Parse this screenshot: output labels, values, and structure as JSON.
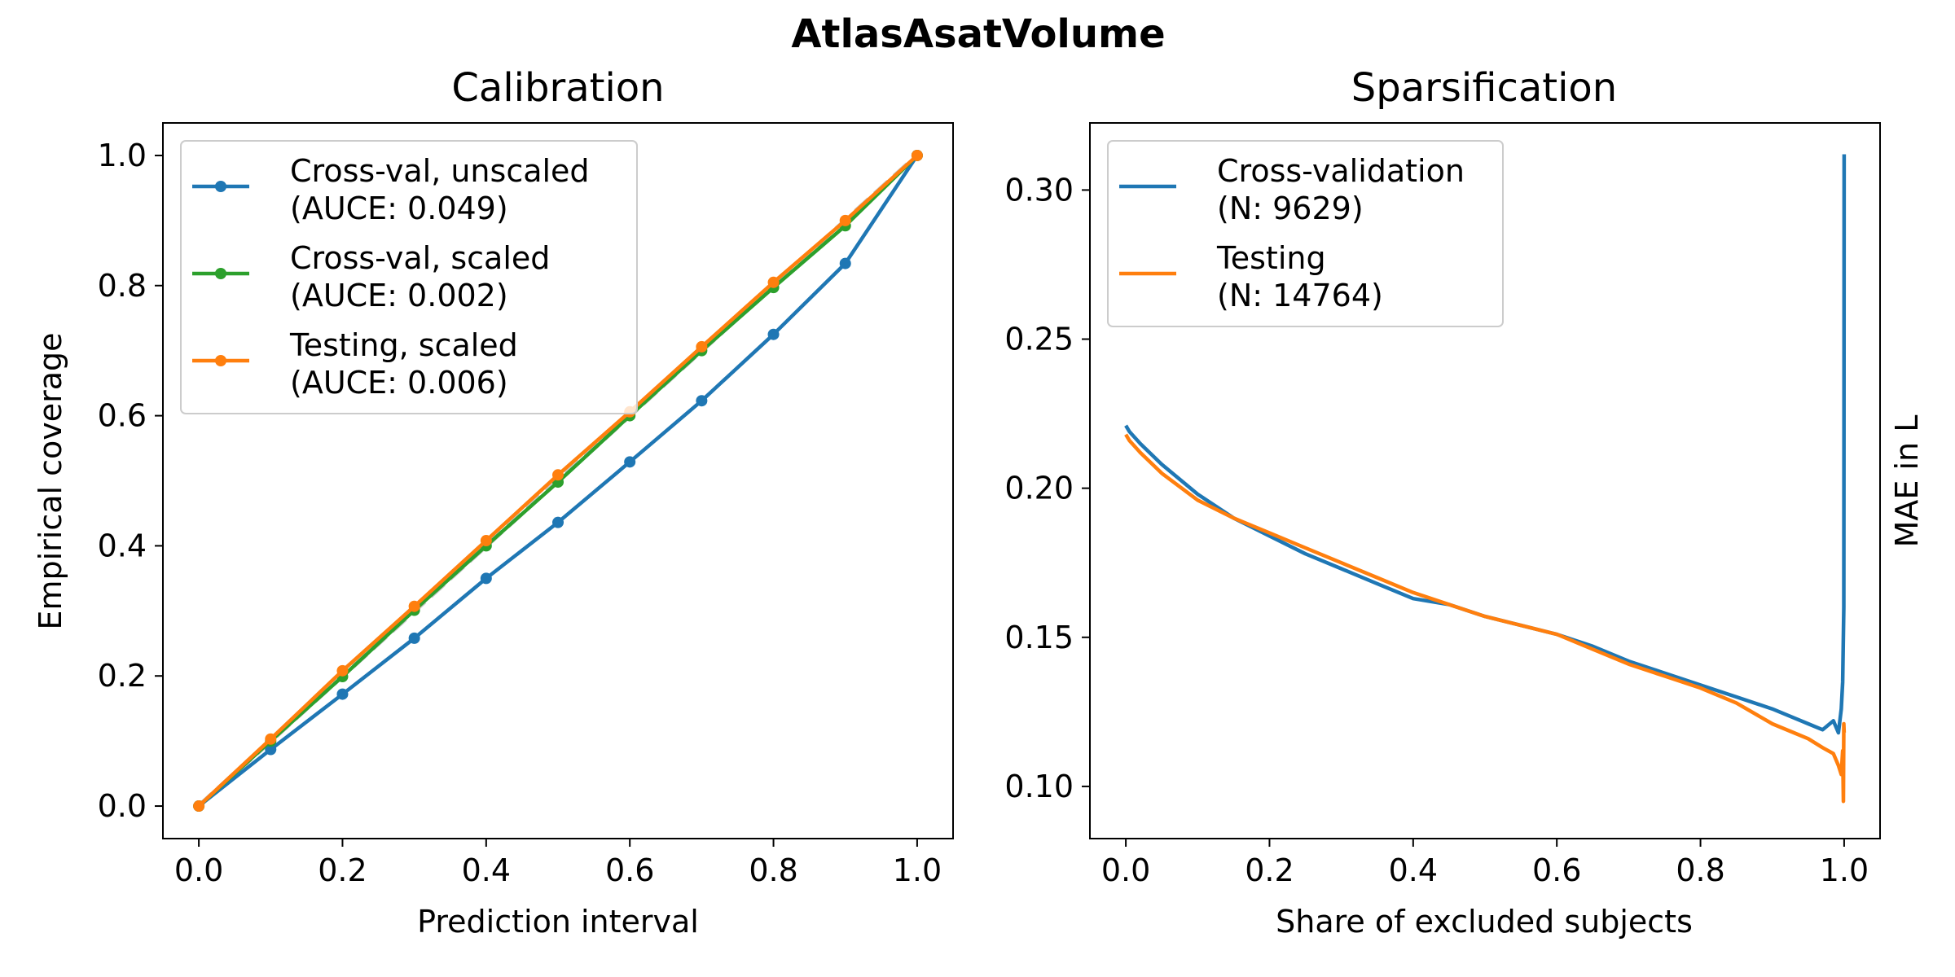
{
  "figure_title": "AtlasAsatVolume",
  "chart_data": [
    {
      "type": "line",
      "title": "Calibration",
      "xlabel": "Prediction interval",
      "ylabel": "Empirical coverage",
      "xlim": [
        -0.05,
        1.05
      ],
      "ylim": [
        -0.05,
        1.05
      ],
      "xticks": [
        "0.0",
        "0.2",
        "0.4",
        "0.6",
        "0.8",
        "1.0"
      ],
      "yticks": [
        "0.0",
        "0.2",
        "0.4",
        "0.6",
        "0.8",
        "1.0"
      ],
      "grid": false,
      "legend_position": "upper-left",
      "reference_line": {
        "x": [
          0,
          1
        ],
        "y": [
          0,
          1
        ],
        "style": "dashed",
        "color": "#c8c8c8"
      },
      "x": [
        0.0,
        0.1,
        0.2,
        0.3,
        0.4,
        0.5,
        0.6,
        0.7,
        0.8,
        0.9,
        1.0
      ],
      "series": [
        {
          "name": "Cross-val, unscaled",
          "sub": "(AUCE: 0.049)",
          "color": "#1f77b4",
          "values": [
            0.0,
            0.087,
            0.172,
            0.258,
            0.35,
            0.436,
            0.529,
            0.623,
            0.725,
            0.834,
            1.0
          ]
        },
        {
          "name": "Cross-val, scaled",
          "sub": "(AUCE: 0.002)",
          "color": "#2ca02c",
          "values": [
            0.0,
            0.1,
            0.199,
            0.301,
            0.4,
            0.498,
            0.6,
            0.7,
            0.797,
            0.892,
            1.0
          ]
        },
        {
          "name": "Testing, scaled",
          "sub": "(AUCE: 0.006)",
          "color": "#ff7f0e",
          "values": [
            0.0,
            0.103,
            0.208,
            0.307,
            0.408,
            0.509,
            0.606,
            0.706,
            0.805,
            0.9,
            1.0
          ]
        }
      ]
    },
    {
      "type": "line",
      "title": "Sparsification",
      "xlabel": "Share of excluded subjects",
      "ylabel": "MAE in L",
      "ylabel_position": "right",
      "xlim": [
        -0.05,
        1.05
      ],
      "ylim": [
        0.0825,
        0.3225
      ],
      "xticks": [
        "0.0",
        "0.2",
        "0.4",
        "0.6",
        "0.8",
        "1.0"
      ],
      "yticks": [
        "0.10",
        "0.15",
        "0.20",
        "0.25",
        "0.30"
      ],
      "grid": false,
      "legend_position": "upper-left",
      "series": [
        {
          "name": "Cross-validation",
          "sub": "(N: 9629)",
          "color": "#1f77b4",
          "points": [
            [
              0.0,
              0.221
            ],
            [
              0.005,
              0.219
            ],
            [
              0.02,
              0.215
            ],
            [
              0.05,
              0.208
            ],
            [
              0.1,
              0.198
            ],
            [
              0.15,
              0.19
            ],
            [
              0.2,
              0.184
            ],
            [
              0.25,
              0.178
            ],
            [
              0.3,
              0.173
            ],
            [
              0.35,
              0.168
            ],
            [
              0.4,
              0.163
            ],
            [
              0.45,
              0.161
            ],
            [
              0.5,
              0.157
            ],
            [
              0.55,
              0.154
            ],
            [
              0.6,
              0.151
            ],
            [
              0.65,
              0.147
            ],
            [
              0.7,
              0.142
            ],
            [
              0.75,
              0.138
            ],
            [
              0.8,
              0.134
            ],
            [
              0.85,
              0.13
            ],
            [
              0.9,
              0.126
            ],
            [
              0.93,
              0.123
            ],
            [
              0.95,
              0.121
            ],
            [
              0.97,
              0.119
            ],
            [
              0.985,
              0.122
            ],
            [
              0.992,
              0.118
            ],
            [
              0.996,
              0.126
            ],
            [
              0.998,
              0.135
            ],
            [
              0.9995,
              0.16
            ],
            [
              0.9998,
              0.22
            ],
            [
              1.0,
              0.312
            ]
          ]
        },
        {
          "name": "Testing",
          "sub": "(N: 14764)",
          "color": "#ff7f0e",
          "points": [
            [
              0.0,
              0.218
            ],
            [
              0.005,
              0.216
            ],
            [
              0.02,
              0.212
            ],
            [
              0.05,
              0.205
            ],
            [
              0.1,
              0.196
            ],
            [
              0.15,
              0.19
            ],
            [
              0.2,
              0.185
            ],
            [
              0.25,
              0.18
            ],
            [
              0.3,
              0.175
            ],
            [
              0.35,
              0.17
            ],
            [
              0.4,
              0.165
            ],
            [
              0.45,
              0.161
            ],
            [
              0.5,
              0.157
            ],
            [
              0.55,
              0.154
            ],
            [
              0.6,
              0.151
            ],
            [
              0.65,
              0.146
            ],
            [
              0.7,
              0.141
            ],
            [
              0.75,
              0.137
            ],
            [
              0.8,
              0.133
            ],
            [
              0.85,
              0.128
            ],
            [
              0.9,
              0.121
            ],
            [
              0.93,
              0.118
            ],
            [
              0.95,
              0.116
            ],
            [
              0.97,
              0.113
            ],
            [
              0.985,
              0.111
            ],
            [
              0.992,
              0.107
            ],
            [
              0.996,
              0.104
            ],
            [
              0.998,
              0.112
            ],
            [
              0.999,
              0.095
            ],
            [
              0.9995,
              0.121
            ],
            [
              1.0,
              0.118
            ]
          ]
        }
      ]
    }
  ]
}
